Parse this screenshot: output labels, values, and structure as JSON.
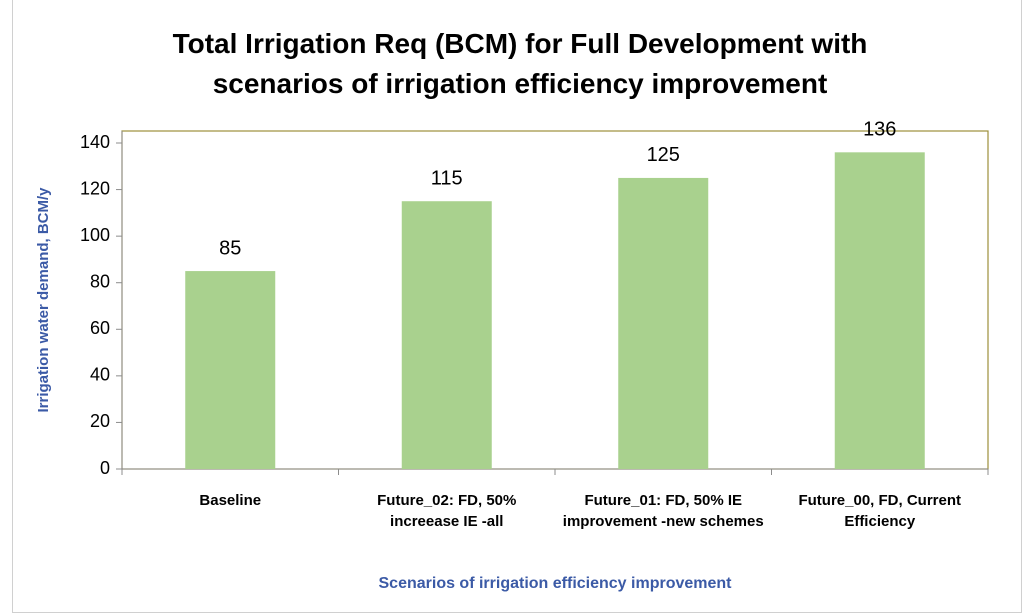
{
  "chart_data": {
    "type": "bar",
    "title": "Total Irrigation Req (BCM) for Full Development with scenarios of irrigation efficiency improvement",
    "x_label": "Scenarios of irrigation efficiency improvement",
    "y_label": "Irrigation water demand, BCM/y",
    "categories": [
      "Baseline",
      "Future_02: FD, 50% increease IE -all",
      "Future_01: FD, 50% IE improvement -new schemes",
      "Future_00, FD, Current Efficiency"
    ],
    "values": [
      85,
      115,
      125,
      136
    ],
    "color": "#a9d18e",
    "ylim": [
      0,
      140
    ],
    "yticks": [
      0,
      20,
      40,
      60,
      80,
      100,
      120,
      140
    ],
    "grid": false
  }
}
